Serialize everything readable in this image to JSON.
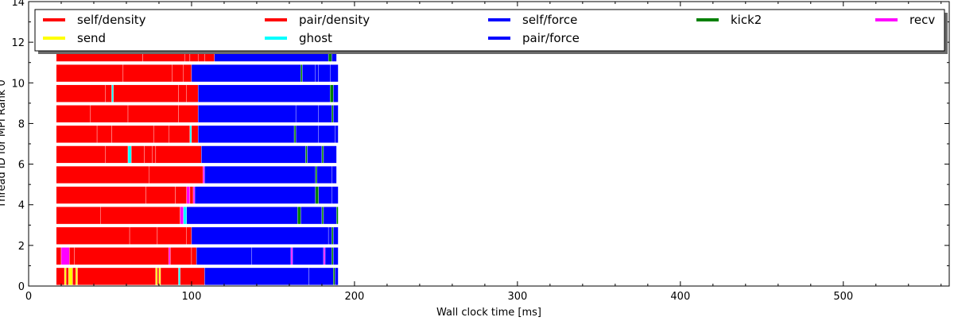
{
  "chart_data": {
    "type": "bar",
    "subtype": "task-timeline",
    "title": "",
    "xlabel": "Wall clock time [ms]",
    "ylabel": "Thread ID for MPI Rank 0",
    "xlim": [
      0,
      565
    ],
    "ylim": [
      0,
      14
    ],
    "xticks": [
      0,
      100,
      200,
      300,
      400,
      500
    ],
    "yticks": [
      0,
      2,
      4,
      6,
      8,
      10,
      12,
      14
    ],
    "grid": false,
    "legend": {
      "placement": "top",
      "columns": 5
    },
    "series": [
      {
        "name": "self/density",
        "color": "#ff0000"
      },
      {
        "name": "pair/density",
        "color": "#ff0000"
      },
      {
        "name": "self/force",
        "color": "#0000ff"
      },
      {
        "name": "kick2",
        "color": "#008000"
      },
      {
        "name": "recv",
        "color": "#ff00ff"
      },
      {
        "name": "send",
        "color": "#ffff00"
      },
      {
        "name": "ghost",
        "color": "#00ffff"
      },
      {
        "name": "pair/force",
        "color": "#0000ff"
      }
    ],
    "threads": [
      {
        "thread": 0,
        "segments": [
          [
            17,
            22,
            "#ff0000"
          ],
          [
            22,
            23,
            "#ffff00"
          ],
          [
            23,
            24.5,
            "#ff0000"
          ],
          [
            24.5,
            27,
            "#ffff00"
          ],
          [
            27,
            29,
            "#ff0000"
          ],
          [
            29,
            30,
            "#ffff00"
          ],
          [
            30,
            78,
            "#ff0000"
          ],
          [
            78,
            79,
            "#ffff00"
          ],
          [
            79,
            80,
            "#ff0000"
          ],
          [
            80,
            81,
            "#ffff00"
          ],
          [
            81,
            92,
            "#ff0000"
          ],
          [
            92,
            93,
            "#00ffff"
          ],
          [
            93,
            108,
            "#ff0000"
          ],
          [
            108,
            172,
            "#0000ff"
          ],
          [
            172,
            187,
            "#0000ff"
          ],
          [
            187,
            188,
            "#008000"
          ],
          [
            188,
            190,
            "#0000ff"
          ]
        ]
      },
      {
        "thread": 1,
        "segments": [
          [
            17,
            20,
            "#ff0000"
          ],
          [
            20,
            25,
            "#ff00ff"
          ],
          [
            25,
            28,
            "#ff0000"
          ],
          [
            28,
            86,
            "#ff0000"
          ],
          [
            86,
            87,
            "#ff00ff"
          ],
          [
            87,
            100,
            "#ff0000"
          ],
          [
            100,
            103,
            "#ff0000"
          ],
          [
            103,
            137,
            "#0000ff"
          ],
          [
            137,
            161,
            "#0000ff"
          ],
          [
            161,
            162,
            "#ff00ff"
          ],
          [
            162,
            181,
            "#0000ff"
          ],
          [
            181,
            182,
            "#ff00ff"
          ],
          [
            182,
            186,
            "#0000ff"
          ],
          [
            186,
            187,
            "#008000"
          ],
          [
            187,
            190,
            "#0000ff"
          ]
        ]
      },
      {
        "thread": 2,
        "segments": [
          [
            17,
            62,
            "#ff0000"
          ],
          [
            62,
            79,
            "#ff0000"
          ],
          [
            79,
            97,
            "#ff0000"
          ],
          [
            97,
            100,
            "#ff0000"
          ],
          [
            100,
            184,
            "#0000ff"
          ],
          [
            184,
            186,
            "#0000ff"
          ],
          [
            186,
            187,
            "#008000"
          ],
          [
            187,
            190,
            "#0000ff"
          ]
        ]
      },
      {
        "thread": 3,
        "segments": [
          [
            17,
            44,
            "#ff0000"
          ],
          [
            44,
            93,
            "#ff0000"
          ],
          [
            93,
            95,
            "#ff00ff"
          ],
          [
            95,
            97,
            "#00ffff"
          ],
          [
            97,
            165,
            "#0000ff"
          ],
          [
            165,
            167,
            "#008000"
          ],
          [
            167,
            180,
            "#0000ff"
          ],
          [
            180,
            181,
            "#008000"
          ],
          [
            181,
            189,
            "#0000ff"
          ],
          [
            189,
            190,
            "#008000"
          ]
        ]
      },
      {
        "thread": 4,
        "segments": [
          [
            17,
            72,
            "#ff0000"
          ],
          [
            72,
            90,
            "#ff0000"
          ],
          [
            90,
            97,
            "#ff0000"
          ],
          [
            97,
            99,
            "#ff00ff"
          ],
          [
            99,
            101,
            "#ff0000"
          ],
          [
            101,
            102,
            "#ff00ff"
          ],
          [
            102,
            176,
            "#0000ff"
          ],
          [
            176,
            178,
            "#008000"
          ],
          [
            178,
            186,
            "#0000ff"
          ],
          [
            186,
            190,
            "#0000ff"
          ]
        ]
      },
      {
        "thread": 5,
        "segments": [
          [
            17,
            74,
            "#ff0000"
          ],
          [
            74,
            107,
            "#ff0000"
          ],
          [
            107,
            108,
            "#ff00ff"
          ],
          [
            108,
            176,
            "#0000ff"
          ],
          [
            176,
            177,
            "#008000"
          ],
          [
            177,
            186,
            "#0000ff"
          ],
          [
            186,
            189,
            "#0000ff"
          ]
        ]
      },
      {
        "thread": 6,
        "segments": [
          [
            17,
            47,
            "#ff0000"
          ],
          [
            47,
            61,
            "#ff0000"
          ],
          [
            61,
            63,
            "#00ffff"
          ],
          [
            63,
            71,
            "#ff0000"
          ],
          [
            71,
            76,
            "#ff0000"
          ],
          [
            76,
            78,
            "#ff0000"
          ],
          [
            78,
            106,
            "#ff0000"
          ],
          [
            106,
            170,
            "#0000ff"
          ],
          [
            170,
            171,
            "#008000"
          ],
          [
            171,
            180,
            "#0000ff"
          ],
          [
            180,
            181,
            "#008000"
          ],
          [
            181,
            189,
            "#0000ff"
          ]
        ]
      },
      {
        "thread": 7,
        "segments": [
          [
            17,
            42,
            "#ff0000"
          ],
          [
            42,
            51,
            "#ff0000"
          ],
          [
            51,
            77,
            "#ff0000"
          ],
          [
            77,
            86,
            "#ff0000"
          ],
          [
            86,
            99,
            "#ff0000"
          ],
          [
            99,
            100,
            "#00ffff"
          ],
          [
            100,
            104,
            "#ff0000"
          ],
          [
            104,
            163,
            "#0000ff"
          ],
          [
            163,
            164,
            "#008000"
          ],
          [
            164,
            178,
            "#0000ff"
          ],
          [
            178,
            188,
            "#0000ff"
          ],
          [
            188,
            190,
            "#0000ff"
          ]
        ]
      },
      {
        "thread": 8,
        "segments": [
          [
            17,
            38,
            "#ff0000"
          ],
          [
            38,
            61,
            "#ff0000"
          ],
          [
            61,
            92,
            "#ff0000"
          ],
          [
            92,
            104,
            "#ff0000"
          ],
          [
            104,
            164,
            "#0000ff"
          ],
          [
            164,
            178,
            "#0000ff"
          ],
          [
            178,
            186,
            "#0000ff"
          ],
          [
            186,
            187,
            "#008000"
          ],
          [
            187,
            190,
            "#0000ff"
          ]
        ]
      },
      {
        "thread": 9,
        "segments": [
          [
            17,
            47,
            "#ff0000"
          ],
          [
            47,
            51,
            "#ff0000"
          ],
          [
            51,
            52,
            "#00ffff"
          ],
          [
            52,
            92,
            "#ff0000"
          ],
          [
            92,
            97,
            "#ff0000"
          ],
          [
            97,
            104,
            "#ff0000"
          ],
          [
            104,
            185,
            "#0000ff"
          ],
          [
            185,
            187,
            "#008000"
          ],
          [
            187,
            190,
            "#0000ff"
          ]
        ]
      },
      {
        "thread": 10,
        "segments": [
          [
            17,
            58,
            "#ff0000"
          ],
          [
            58,
            88,
            "#ff0000"
          ],
          [
            88,
            95,
            "#ff0000"
          ],
          [
            95,
            100,
            "#ff0000"
          ],
          [
            100,
            167,
            "#0000ff"
          ],
          [
            167,
            168,
            "#008000"
          ],
          [
            168,
            176,
            "#0000ff"
          ],
          [
            176,
            178,
            "#0000ff"
          ],
          [
            178,
            185,
            "#0000ff"
          ],
          [
            185,
            190,
            "#0000ff"
          ]
        ]
      },
      {
        "thread": 11,
        "segments": [
          [
            17,
            70,
            "#ff0000"
          ],
          [
            70,
            96,
            "#ff0000"
          ],
          [
            96,
            99,
            "#ff0000"
          ],
          [
            99,
            104,
            "#ff0000"
          ],
          [
            104,
            108,
            "#ff0000"
          ],
          [
            108,
            114,
            "#ff0000"
          ],
          [
            114,
            184,
            "#0000ff"
          ],
          [
            184,
            186,
            "#008000"
          ],
          [
            186,
            189,
            "#0000ff"
          ]
        ]
      }
    ]
  }
}
